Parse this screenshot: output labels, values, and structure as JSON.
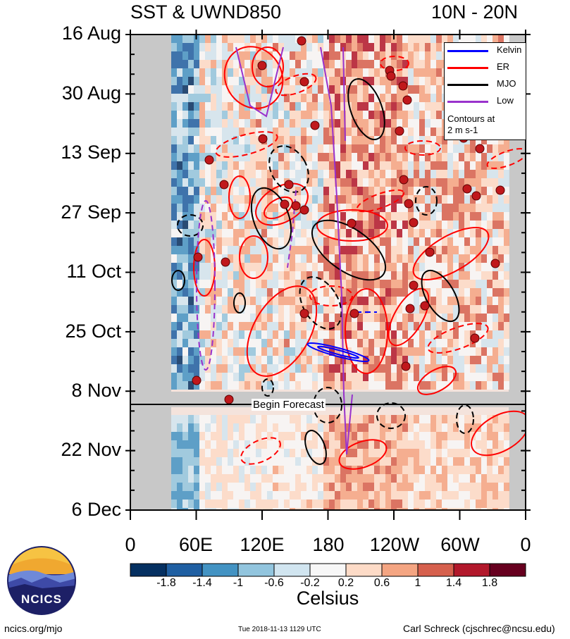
{
  "title": "SST & UWND850",
  "region": "10N - 20N",
  "forecast_label": "Begin Forecast",
  "footer": {
    "site": "ncics.org/mjo",
    "timestamp": "Tue 2018-11-13 1129 UTC",
    "author": "Carl Schreck (cjschrec@ncsu.edu)"
  },
  "logo_text": "NCICS",
  "colorbar": {
    "label": "Celsius",
    "ticks": [
      "-1.8",
      "-1.4",
      "-1",
      "-0.6",
      "-0.2",
      "0.2",
      "0.6",
      "1",
      "1.4",
      "1.8"
    ],
    "colors": [
      "#053061",
      "#1f5fa2",
      "#4393c3",
      "#92c5de",
      "#d1e5f0",
      "#f7f7f7",
      "#fddbc7",
      "#f4a582",
      "#d6604d",
      "#b2182b",
      "#67001f"
    ]
  },
  "legend": {
    "items": [
      {
        "label": "Kelvin",
        "color": "#0000ff"
      },
      {
        "label": "ER",
        "color": "#ff0000"
      },
      {
        "label": "MJO",
        "color": "#000000"
      },
      {
        "label": "Low",
        "color": "#9932cc"
      }
    ],
    "note_line1": "Contours at",
    "note_line2": "2 m s-1"
  },
  "chart_data": {
    "type": "heatmap",
    "title": "SST & UWND850",
    "subtitle": "10N - 20N",
    "x_axis": {
      "ticks": [
        "0",
        "60E",
        "120E",
        "180",
        "120W",
        "60W",
        "0"
      ],
      "range": [
        "0",
        "0"
      ]
    },
    "y_axis": {
      "ticks": [
        "16 Aug",
        "30 Aug",
        "13 Sep",
        "27 Sep",
        "11 Oct",
        "25 Oct",
        "8 Nov",
        "22 Nov",
        "6 Dec"
      ],
      "range": [
        "16 Aug",
        "6 Dec"
      ]
    },
    "forecast_start": "Begin Forecast",
    "shading_variable": "SST anomaly",
    "shading_units": "Celsius",
    "contour_spacing": "2 m s-1",
    "contour_filters": [
      "Kelvin",
      "ER",
      "MJO",
      "Low"
    ]
  }
}
